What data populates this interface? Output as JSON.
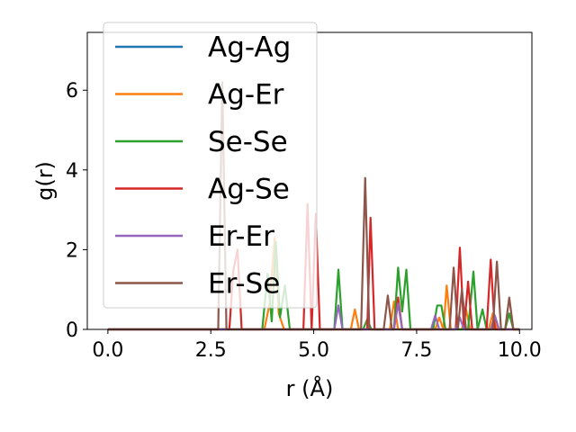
{
  "chart_data": {
    "type": "line",
    "title": "",
    "xlabel": "r (Å)",
    "ylabel": "g(r)",
    "xlim": [
      -0.5,
      10.3
    ],
    "ylim": [
      0,
      7.45
    ],
    "xticks": [
      0.0,
      2.5,
      5.0,
      7.5,
      10.0
    ],
    "xtick_labels": [
      "0.0",
      "2.5",
      "5.0",
      "7.5",
      "10.0"
    ],
    "yticks": [
      0,
      2,
      4,
      6
    ],
    "ytick_labels": [
      "0",
      "2",
      "4",
      "6"
    ],
    "grid": false,
    "legend_position": "upper left",
    "series": [
      {
        "name": "Ag-Ag",
        "color": "#1f77b4",
        "points": [
          [
            0.0,
            0.0
          ],
          [
            10.0,
            0.0
          ]
        ]
      },
      {
        "name": "Ag-Er",
        "color": "#ff7f0e",
        "points": [
          [
            0.0,
            0.0
          ],
          [
            3.8,
            0.0
          ],
          [
            3.93,
            0.65
          ],
          [
            4.05,
            2.3
          ],
          [
            4.15,
            0.4
          ],
          [
            4.28,
            0.0
          ],
          [
            5.9,
            0.0
          ],
          [
            6.0,
            0.5
          ],
          [
            6.1,
            0.0
          ],
          [
            6.85,
            0.0
          ],
          [
            6.95,
            0.7
          ],
          [
            7.05,
            0.0
          ],
          [
            7.95,
            0.0
          ],
          [
            8.05,
            0.3
          ],
          [
            8.15,
            0.0
          ],
          [
            8.23,
            1.1
          ],
          [
            8.33,
            0.0
          ],
          [
            8.6,
            0.0
          ],
          [
            8.7,
            0.5
          ],
          [
            8.8,
            0.0
          ],
          [
            9.25,
            0.0
          ],
          [
            9.35,
            0.4
          ],
          [
            9.45,
            0.0
          ],
          [
            10.0,
            0.0
          ]
        ]
      },
      {
        "name": "Se-Se",
        "color": "#2ca02c",
        "points": [
          [
            0.0,
            0.0
          ],
          [
            3.75,
            0.0
          ],
          [
            3.88,
            1.4
          ],
          [
            3.98,
            0.2
          ],
          [
            4.08,
            2.2
          ],
          [
            4.18,
            0.3
          ],
          [
            4.3,
            1.1
          ],
          [
            4.42,
            0.0
          ],
          [
            5.5,
            0.0
          ],
          [
            5.6,
            1.5
          ],
          [
            5.7,
            0.0
          ],
          [
            6.2,
            0.0
          ],
          [
            6.3,
            0.25
          ],
          [
            6.4,
            0.0
          ],
          [
            6.95,
            0.0
          ],
          [
            7.05,
            1.55
          ],
          [
            7.15,
            0.45
          ],
          [
            7.25,
            1.5
          ],
          [
            7.35,
            0.0
          ],
          [
            7.9,
            0.0
          ],
          [
            8.0,
            0.6
          ],
          [
            8.1,
            0.6
          ],
          [
            8.2,
            0.0
          ],
          [
            8.75,
            0.0
          ],
          [
            8.88,
            1.45
          ],
          [
            8.98,
            0.0
          ],
          [
            9.1,
            0.5
          ],
          [
            9.2,
            0.0
          ],
          [
            9.65,
            0.0
          ],
          [
            9.75,
            0.4
          ],
          [
            9.85,
            0.0
          ],
          [
            10.0,
            0.0
          ]
        ]
      },
      {
        "name": "Ag-Se",
        "color": "#d62728",
        "points": [
          [
            0.0,
            0.0
          ],
          [
            2.95,
            0.0
          ],
          [
            3.05,
            1.5
          ],
          [
            3.15,
            2.0
          ],
          [
            3.25,
            0.0
          ],
          [
            4.75,
            0.0
          ],
          [
            4.85,
            3.15
          ],
          [
            4.95,
            0.0
          ],
          [
            5.05,
            2.9
          ],
          [
            5.15,
            0.0
          ],
          [
            6.3,
            0.0
          ],
          [
            6.38,
            2.8
          ],
          [
            6.48,
            0.0
          ],
          [
            6.95,
            0.0
          ],
          [
            7.05,
            0.8
          ],
          [
            7.15,
            0.0
          ],
          [
            8.45,
            0.0
          ],
          [
            8.55,
            2.05
          ],
          [
            8.65,
            0.0
          ],
          [
            8.75,
            1.2
          ],
          [
            8.85,
            0.0
          ],
          [
            9.2,
            0.0
          ],
          [
            9.3,
            1.75
          ],
          [
            9.4,
            0.0
          ],
          [
            10.0,
            0.0
          ]
        ]
      },
      {
        "name": "Er-Er",
        "color": "#9467bd",
        "points": [
          [
            0.0,
            0.0
          ],
          [
            5.5,
            0.0
          ],
          [
            5.6,
            0.6
          ],
          [
            5.7,
            0.0
          ],
          [
            6.95,
            0.0
          ],
          [
            7.05,
            0.65
          ],
          [
            7.15,
            0.0
          ],
          [
            7.85,
            0.0
          ],
          [
            7.95,
            0.35
          ],
          [
            8.05,
            0.0
          ],
          [
            8.45,
            0.0
          ],
          [
            8.55,
            0.3
          ],
          [
            8.65,
            0.0
          ],
          [
            9.3,
            0.0
          ],
          [
            9.4,
            0.35
          ],
          [
            9.5,
            0.0
          ],
          [
            10.0,
            0.0
          ]
        ]
      },
      {
        "name": "Er-Se",
        "color": "#8c564b",
        "points": [
          [
            0.0,
            0.0
          ],
          [
            2.68,
            0.0
          ],
          [
            2.78,
            6.2
          ],
          [
            2.88,
            0.0
          ],
          [
            6.15,
            0.0
          ],
          [
            6.25,
            3.8
          ],
          [
            6.35,
            0.0
          ],
          [
            6.7,
            0.0
          ],
          [
            6.8,
            0.85
          ],
          [
            6.9,
            0.0
          ],
          [
            8.3,
            0.0
          ],
          [
            8.4,
            1.55
          ],
          [
            8.5,
            0.0
          ],
          [
            8.6,
            1.0
          ],
          [
            8.7,
            0.0
          ],
          [
            9.35,
            0.0
          ],
          [
            9.45,
            1.7
          ],
          [
            9.55,
            0.0
          ],
          [
            9.65,
            0.0
          ],
          [
            9.75,
            0.8
          ],
          [
            9.85,
            0.0
          ],
          [
            10.0,
            0.0
          ]
        ]
      }
    ]
  }
}
